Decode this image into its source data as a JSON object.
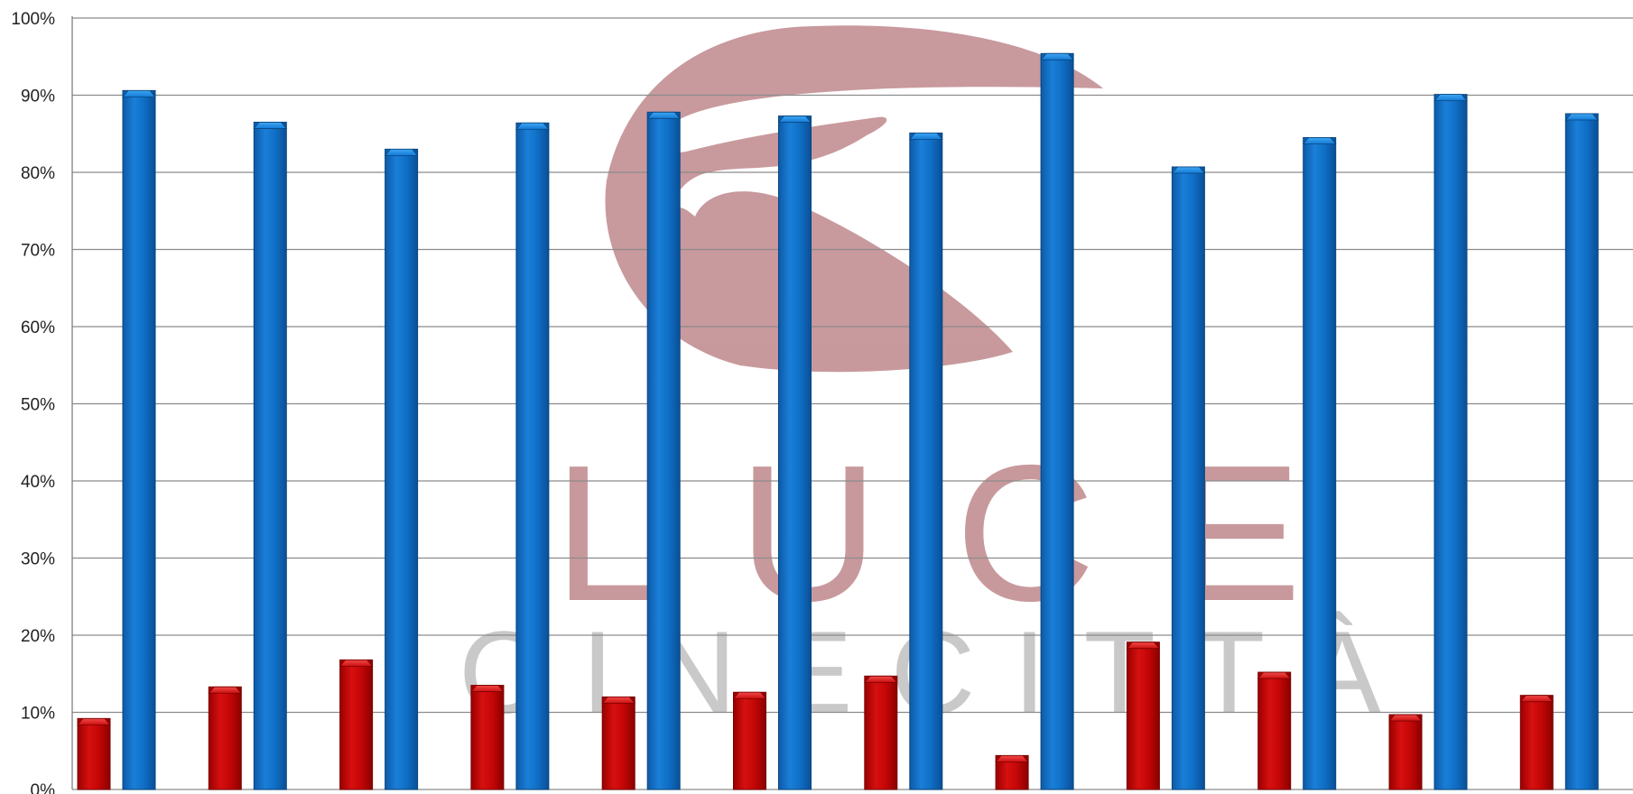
{
  "chart_data": {
    "type": "bar",
    "title": "",
    "xlabel": "",
    "ylabel": "",
    "ylim": [
      0,
      1
    ],
    "y_ticks": [
      "0%",
      "10%",
      "20%",
      "30%",
      "40%",
      "50%",
      "60%",
      "70%",
      "80%",
      "90%",
      "100%"
    ],
    "grid": true,
    "categories": [
      "",
      "",
      "",
      "",
      "",
      "",
      "",
      "",
      "",
      "",
      "",
      ""
    ],
    "series": [
      {
        "color": "#c00000",
        "values": [
          0.092,
          0.133,
          0.168,
          0.135,
          0.12,
          0.126,
          0.147,
          0.044,
          0.191,
          0.152,
          0.097,
          0.122
        ]
      },
      {
        "color": "#1570c8",
        "values": [
          0.906,
          0.865,
          0.83,
          0.864,
          0.878,
          0.873,
          0.851,
          0.954,
          0.807,
          0.845,
          0.901,
          0.876
        ]
      }
    ]
  },
  "watermark": {
    "line1": "LUCE",
    "line2": "CINECITTÀ",
    "logo_color": "#c7979b",
    "text_color": "#c8c8c8"
  }
}
